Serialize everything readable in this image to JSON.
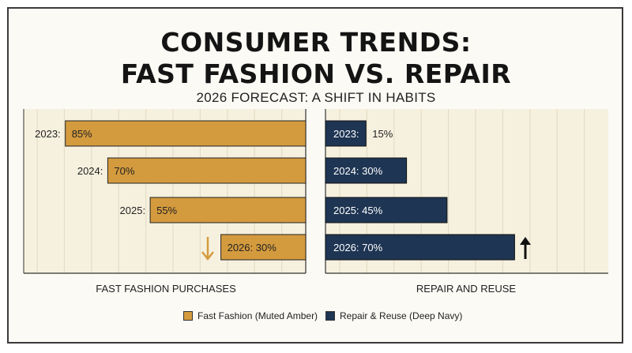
{
  "title_line1": "CONSUMER TRENDS:",
  "title_line2": "FAST FASHION VS. REPAIR",
  "subtitle": "2026 FORECAST: A SHIFT IN HABITS",
  "colors": {
    "fast_fashion": "#D49B3E",
    "repair": "#1E3553",
    "panel_bg": "#F6F1DF",
    "grid": "#E4DDC6"
  },
  "chart_data": [
    {
      "type": "bar",
      "orientation": "horizontal",
      "direction": "right-aligned",
      "xlabel": "FAST FASHION PURCHASES",
      "xlim": [
        0,
        100
      ],
      "grid": true,
      "series": [
        {
          "name": "Fast Fashion (Muted Amber)",
          "categories": [
            "2023:",
            "2024:",
            "2025:",
            "2026: 30%"
          ],
          "values": [
            85,
            70,
            55,
            30
          ],
          "data_labels": [
            "85%",
            "70%",
            "55%",
            ""
          ]
        }
      ],
      "annotation": "down-arrow-icon"
    },
    {
      "type": "bar",
      "orientation": "horizontal",
      "direction": "left-aligned",
      "xlabel": "REPAIR AND REUSE",
      "xlim": [
        0,
        100
      ],
      "grid": true,
      "series": [
        {
          "name": "Repair & Reuse (Deep Navy)",
          "categories": [
            "2023:",
            "2024: 30%",
            "2025: 45%",
            "2026: 70%"
          ],
          "values": [
            15,
            30,
            45,
            70
          ],
          "data_labels": [
            "15%",
            "",
            "",
            ""
          ]
        }
      ],
      "annotation": "up-arrow-icon"
    }
  ],
  "legend": [
    {
      "label": "Fast Fashion (Muted Amber)",
      "color": "#D49B3E"
    },
    {
      "label": "Repair & Reuse (Deep Navy)",
      "color": "#1E3553"
    }
  ]
}
